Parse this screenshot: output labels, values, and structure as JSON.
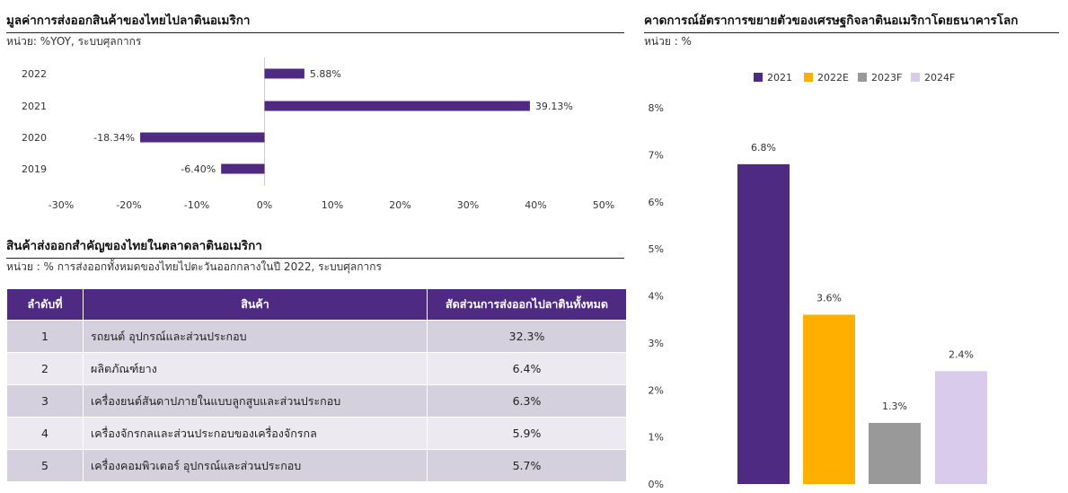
{
  "left_top": {
    "title": "มูลค่าการส่งออกสินค้าของไทยไปลาตินอเมริกา",
    "unit": "หน่วย: %YOY, ระบบศุลกากร"
  },
  "left_bottom": {
    "title": "สินค้าส่งออกสำคัญของไทยในตลาดลาตินอเมริกา",
    "unit": "หน่วย : % การส่งออกทั้งหมดของไทยไปตะวันออกกลางในปี 2022, ระบบศุลกากร",
    "headers": [
      "ลำดับที่",
      "สินค้า",
      "สัดส่วนการส่งออกไปลาตินทั้งหมด"
    ],
    "rows": [
      {
        "rank": "1",
        "product": "รถยนต์ อุปกรณ์และส่วนประกอบ",
        "share": "32.3%"
      },
      {
        "rank": "2",
        "product": "ผลิตภัณฑ์ยาง",
        "share": "6.4%"
      },
      {
        "rank": "3",
        "product": "เครื่องยนต์สันดาปภายในแบบลูกสูบและส่วนประกอบ",
        "share": "6.3%"
      },
      {
        "rank": "4",
        "product": "เครื่องจักรกลและส่วนประกอบของเครื่องจักรกล",
        "share": "5.9%"
      },
      {
        "rank": "5",
        "product": "เครื่องคอมพิวเตอร์ อุปกรณ์และส่วนประกอบ",
        "share": "5.7%"
      }
    ]
  },
  "right": {
    "title": "คาดการณ์อัตราการขยายตัวของเศรษฐกิจลาตินอเมริกาโดยธนาคารโลก",
    "unit": "หน่วย : %"
  },
  "chart_data": [
    {
      "type": "bar",
      "orientation": "horizontal",
      "categories": [
        "2022",
        "2021",
        "2020",
        "2019"
      ],
      "values": [
        5.88,
        39.13,
        -18.34,
        -6.4
      ],
      "data_labels": [
        "5.88%",
        "39.13%",
        "-18.34%",
        "-6.40%"
      ],
      "xlim": [
        -30,
        50
      ],
      "xticks": [
        -30,
        -20,
        -10,
        0,
        10,
        20,
        30,
        40,
        50
      ],
      "xtick_labels": [
        "-30%",
        "-20%",
        "-10%",
        "0%",
        "10%",
        "20%",
        "30%",
        "40%",
        "50%"
      ],
      "bar_color": "#4f2a82",
      "grid": false
    },
    {
      "type": "bar",
      "categories": [
        "2021",
        "2022E",
        "2023F",
        "2024F"
      ],
      "values": [
        6.8,
        3.6,
        1.3,
        2.4
      ],
      "data_labels": [
        "6.8%",
        "3.6%",
        "1.3%",
        "2.4%"
      ],
      "colors": [
        "#4f2a82",
        "#ffaf00",
        "#999999",
        "#d9cbec"
      ],
      "legend_entries": [
        "2021",
        "2022E",
        "2023F",
        "2024F"
      ],
      "legend": "top",
      "ylim": [
        0,
        8
      ],
      "yticks": [
        0,
        1,
        2,
        3,
        4,
        5,
        6,
        7,
        8
      ],
      "ytick_labels": [
        "0%",
        "1%",
        "2%",
        "3%",
        "4%",
        "5%",
        "6%",
        "7%",
        "8%"
      ],
      "grid": false
    }
  ]
}
